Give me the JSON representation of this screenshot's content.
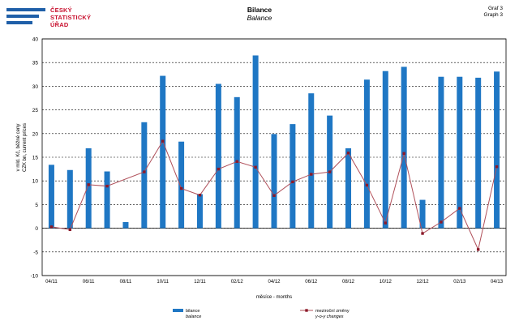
{
  "header": {
    "logo_lines": [
      "ČESKÝ",
      "STATISTICKÝ",
      "ÚŘAD"
    ],
    "title_cz": "Bilance",
    "title_en": "Balance",
    "graf_cz": "Graf 3",
    "graf_en": "Graph 3"
  },
  "colors": {
    "bar": "#1f77c4",
    "line": "#b0505a",
    "marker": "#8b1a2a",
    "logo_blue": "#1f5fa8",
    "logo_red": "#c8102e"
  },
  "chart_data": {
    "type": "bar",
    "title": "Bilance",
    "subtitle": "Balance",
    "ylabel_lines": [
      "v mld. Kč, běžné ceny",
      "CZK bn, current prices"
    ],
    "xlabel": "měsíce - months",
    "ylim": [
      -10,
      40
    ],
    "yticks": [
      -10,
      -5,
      0,
      5,
      10,
      15,
      20,
      25,
      30,
      35,
      40
    ],
    "grid": true,
    "legend_position": "bottom",
    "categories": [
      "04/11",
      "05/11",
      "06/11",
      "07/11",
      "08/11",
      "09/11",
      "10/11",
      "11/11",
      "12/11",
      "01/12",
      "02/12",
      "03/12",
      "04/12",
      "05/12",
      "06/12",
      "07/12",
      "08/12",
      "09/12",
      "10/12",
      "11/12",
      "12/12",
      "01/13",
      "02/13",
      "03/13",
      "04/13"
    ],
    "category_labels_shown": [
      "04/11",
      "06/11",
      "08/11",
      "10/11",
      "12/11",
      "02/12",
      "04/12",
      "06/12",
      "08/12",
      "10/12",
      "12/12",
      "02/13",
      "04/13"
    ],
    "series": [
      {
        "name": "bilance",
        "name_en": "balance",
        "kind": "bar",
        "values": [
          13.4,
          12.3,
          16.9,
          12.0,
          1.3,
          22.4,
          32.2,
          18.3,
          7.2,
          30.5,
          27.7,
          36.5,
          19.9,
          22.0,
          28.5,
          23.8,
          16.9,
          31.4,
          33.2,
          34.1,
          6.0,
          32.0,
          32.0,
          31.8,
          33.1
        ]
      },
      {
        "name": "meziroční změny",
        "name_en": "y-o-y changes",
        "kind": "line",
        "values": [
          0.3,
          -0.3,
          9.2,
          8.9,
          null,
          11.9,
          18.4,
          8.4,
          7.0,
          12.5,
          14.1,
          12.9,
          6.9,
          9.8,
          11.4,
          11.9,
          15.9,
          9.1,
          1.1,
          15.8,
          -1.1,
          1.3,
          4.2,
          -4.5,
          13.0
        ]
      }
    ]
  }
}
